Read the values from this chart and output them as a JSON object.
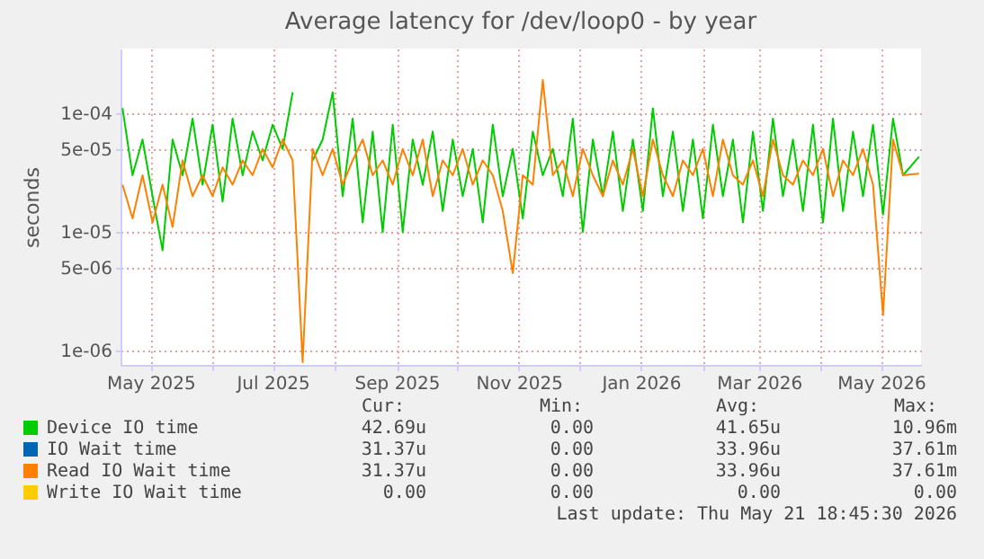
{
  "chart_data": {
    "type": "line",
    "title": "Average latency for /dev/loop0 - by year",
    "ylabel": "seconds",
    "x": [
      "2025-04-17",
      "2025-04-22",
      "2025-04-27",
      "2025-05-02",
      "2025-05-07",
      "2025-05-12",
      "2025-05-17",
      "2025-05-22",
      "2025-05-27",
      "2025-06-01",
      "2025-06-06",
      "2025-06-11",
      "2025-06-16",
      "2025-06-21",
      "2025-06-26",
      "2025-07-01",
      "2025-07-06",
      "2025-07-11",
      "2025-07-16",
      "2025-07-21",
      "2025-07-26",
      "2025-07-31",
      "2025-08-05",
      "2025-08-10",
      "2025-08-15",
      "2025-08-20",
      "2025-08-25",
      "2025-08-30",
      "2025-09-04",
      "2025-09-09",
      "2025-09-14",
      "2025-09-19",
      "2025-09-24",
      "2025-09-29",
      "2025-10-04",
      "2025-10-09",
      "2025-10-14",
      "2025-10-19",
      "2025-10-24",
      "2025-10-29",
      "2025-11-03",
      "2025-11-08",
      "2025-11-13",
      "2025-11-18",
      "2025-11-23",
      "2025-11-28",
      "2025-12-03",
      "2025-12-08",
      "2025-12-13",
      "2025-12-18",
      "2025-12-23",
      "2025-12-28",
      "2026-01-02",
      "2026-01-07",
      "2026-01-12",
      "2026-01-17",
      "2026-01-22",
      "2026-01-27",
      "2026-02-01",
      "2026-02-06",
      "2026-02-11",
      "2026-02-16",
      "2026-02-21",
      "2026-02-26",
      "2026-03-03",
      "2026-03-08",
      "2026-03-13",
      "2026-03-18",
      "2026-03-23",
      "2026-03-28",
      "2026-04-02",
      "2026-04-07",
      "2026-04-12",
      "2026-04-17",
      "2026-04-22",
      "2026-04-27",
      "2026-05-02",
      "2026-05-07",
      "2026-05-12",
      "2026-05-20"
    ],
    "series": [
      {
        "name": "Device IO time",
        "color": "#00cc00",
        "values": [
          0.00011,
          3e-05,
          6e-05,
          2e-05,
          7e-06,
          6e-05,
          3e-05,
          9e-05,
          2.5e-05,
          8e-05,
          1.8e-05,
          9e-05,
          3e-05,
          7e-05,
          4e-05,
          8e-05,
          5e-05,
          0.00015,
          null,
          4e-05,
          6e-05,
          0.00015,
          2e-05,
          9e-05,
          1.2e-05,
          7e-05,
          1e-05,
          8e-05,
          1e-05,
          6e-05,
          2.5e-05,
          7e-05,
          1.5e-05,
          6e-05,
          2e-05,
          5e-05,
          1.2e-05,
          8e-05,
          2e-05,
          5e-05,
          1.3e-05,
          7e-05,
          3e-05,
          5e-05,
          2e-05,
          9e-05,
          1e-05,
          6e-05,
          2e-05,
          7e-05,
          1.5e-05,
          6e-05,
          1.5e-05,
          0.00011,
          2e-05,
          7e-05,
          1.5e-05,
          6e-05,
          1.3e-05,
          8e-05,
          2e-05,
          6e-05,
          1.2e-05,
          7e-05,
          1.5e-05,
          9e-05,
          2e-05,
          6e-05,
          1.5e-05,
          8e-05,
          1.2e-05,
          9e-05,
          1.5e-05,
          7e-05,
          2e-05,
          8e-05,
          1.4e-05,
          9e-05,
          3e-05,
          4.3e-05
        ]
      },
      {
        "name": "IO Wait time",
        "color": "#0066b3",
        "values": [
          null,
          null,
          null,
          null,
          null,
          null,
          null,
          null,
          null,
          null,
          null,
          null,
          null,
          null,
          null,
          null,
          null,
          null,
          null,
          null,
          null,
          null,
          null,
          null,
          null,
          null,
          null,
          null,
          null,
          null,
          null,
          null,
          null,
          null,
          null,
          null,
          null,
          null,
          null,
          null,
          null,
          null,
          null,
          null,
          null,
          null,
          null,
          null,
          null,
          null,
          null,
          null,
          null,
          null,
          null,
          null,
          null,
          null,
          null,
          null,
          null,
          null,
          null,
          null,
          null,
          null,
          null,
          null,
          null,
          null,
          null,
          null,
          null,
          null,
          null,
          null,
          null,
          null,
          null,
          null
        ]
      },
      {
        "name": "Read IO Wait time",
        "color": "#ff8000",
        "values": [
          2.5e-05,
          1.3e-05,
          3e-05,
          1.2e-05,
          2.5e-05,
          1.1e-05,
          4e-05,
          2e-05,
          3e-05,
          2e-05,
          3.5e-05,
          2.5e-05,
          4e-05,
          3e-05,
          5e-05,
          3.5e-05,
          6e-05,
          4e-05,
          8e-07,
          5e-05,
          3e-05,
          5e-05,
          2.5e-05,
          4e-05,
          6e-05,
          3e-05,
          4e-05,
          2.5e-05,
          5e-05,
          3e-05,
          6e-05,
          2e-05,
          4e-05,
          3e-05,
          5e-05,
          2.5e-05,
          4e-05,
          3e-05,
          1.5e-05,
          4.5e-06,
          3e-05,
          2.5e-05,
          0.00019,
          3e-05,
          4e-05,
          2e-05,
          5e-05,
          3e-05,
          2e-05,
          4e-05,
          2.5e-05,
          5e-05,
          2e-05,
          6e-05,
          3e-05,
          2e-05,
          4e-05,
          3e-05,
          5e-05,
          2e-05,
          6e-05,
          3e-05,
          2.5e-05,
          4e-05,
          2e-05,
          6e-05,
          3e-05,
          2.5e-05,
          4e-05,
          3e-05,
          5e-05,
          2e-05,
          4e-05,
          3e-05,
          5e-05,
          2.5e-05,
          2e-06,
          6e-05,
          3e-05,
          3.1e-05
        ]
      },
      {
        "name": "Write IO Wait time",
        "color": "#ffcc00",
        "values": [
          null,
          null,
          null,
          null,
          null,
          null,
          null,
          null,
          null,
          null,
          null,
          null,
          null,
          null,
          null,
          null,
          null,
          null,
          null,
          null,
          null,
          null,
          null,
          null,
          null,
          null,
          null,
          null,
          null,
          null,
          null,
          null,
          null,
          null,
          null,
          null,
          null,
          null,
          null,
          null,
          null,
          null,
          null,
          null,
          null,
          null,
          null,
          null,
          null,
          null,
          null,
          null,
          null,
          null,
          null,
          null,
          null,
          null,
          null,
          null,
          null,
          null,
          null,
          null,
          null,
          null,
          null,
          null,
          null,
          null,
          null,
          null,
          null,
          null,
          null,
          null,
          null,
          null,
          null,
          null
        ]
      }
    ],
    "xlim": [
      "2025-04-16",
      "2026-05-21"
    ],
    "xticks": [
      {
        "value": "2025-05-01",
        "label": "May 2025"
      },
      {
        "value": "2025-06-01",
        "label": null
      },
      {
        "value": "2025-07-01",
        "label": "Jul 2025"
      },
      {
        "value": "2025-08-01",
        "label": null
      },
      {
        "value": "2025-09-01",
        "label": "Sep 2025"
      },
      {
        "value": "2025-10-01",
        "label": null
      },
      {
        "value": "2025-11-01",
        "label": "Nov 2025"
      },
      {
        "value": "2025-12-01",
        "label": null
      },
      {
        "value": "2026-01-01",
        "label": "Jan 2026"
      },
      {
        "value": "2026-02-01",
        "label": null
      },
      {
        "value": "2026-03-01",
        "label": "Mar 2026"
      },
      {
        "value": "2026-04-01",
        "label": null
      },
      {
        "value": "2026-05-01",
        "label": "May 2026"
      }
    ],
    "log": "y",
    "ylim": [
      7.6e-07,
      0.00035
    ],
    "yticks": [
      {
        "value": 1e-06,
        "label": "1e-06"
      },
      {
        "value": 5e-06,
        "label": "5e-06"
      },
      {
        "value": 1e-05,
        "label": "1e-05"
      },
      {
        "value": 5e-05,
        "label": "5e-05"
      },
      {
        "value": 0.0001,
        "label": "1e-04"
      }
    ],
    "grid": true,
    "legend": "bottom",
    "line_style": "solid",
    "marker": "none",
    "annotations": [
      "Cur:",
      "Min:",
      "Avg:",
      "Max:",
      "42.69u",
      "0.00",
      "41.65u",
      "10.96m",
      "31.37u",
      "0.00",
      "33.96u",
      "37.61m",
      "31.37u",
      "0.00",
      "33.96u",
      "37.61m",
      "0.00",
      "0.00",
      "0.00",
      "0.00",
      "Last update: Thu May 21 18:45:30 2026"
    ]
  }
}
